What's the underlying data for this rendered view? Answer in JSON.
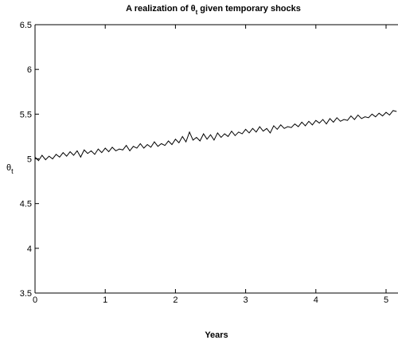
{
  "chart_data": {
    "type": "line",
    "title": [
      "A realization of θ",
      "t",
      " given temporary shocks"
    ],
    "xlabel": "Years",
    "ylabel": [
      "θ",
      "t"
    ],
    "xlim": [
      0,
      5.17
    ],
    "ylim": [
      3.5,
      6.5
    ],
    "xticks": [
      0,
      1,
      2,
      3,
      4,
      5
    ],
    "yticks": [
      3.5,
      4,
      4.5,
      5,
      5.5,
      6,
      6.5
    ],
    "x": [
      0,
      0.05,
      0.1,
      0.15,
      0.2,
      0.25,
      0.3,
      0.35,
      0.4,
      0.45,
      0.5,
      0.55,
      0.6,
      0.65,
      0.7,
      0.75,
      0.8,
      0.85,
      0.9,
      0.95,
      1,
      1.05,
      1.1,
      1.15,
      1.2,
      1.25,
      1.3,
      1.35,
      1.4,
      1.45,
      1.5,
      1.55,
      1.6,
      1.65,
      1.7,
      1.75,
      1.8,
      1.85,
      1.9,
      1.95,
      2,
      2.05,
      2.1,
      2.15,
      2.2,
      2.25,
      2.3,
      2.35,
      2.4,
      2.45,
      2.5,
      2.55,
      2.6,
      2.65,
      2.7,
      2.75,
      2.8,
      2.85,
      2.9,
      2.95,
      3,
      3.05,
      3.1,
      3.15,
      3.2,
      3.25,
      3.3,
      3.35,
      3.4,
      3.45,
      3.5,
      3.55,
      3.6,
      3.65,
      3.7,
      3.75,
      3.8,
      3.85,
      3.9,
      3.95,
      4,
      4.05,
      4.1,
      4.15,
      4.2,
      4.25,
      4.3,
      4.35,
      4.4,
      4.45,
      4.5,
      4.55,
      4.6,
      4.65,
      4.7,
      4.75,
      4.8,
      4.85,
      4.9,
      4.95,
      5,
      5.05,
      5.1,
      5.15
    ],
    "series": [
      {
        "color": "#000000",
        "values": [
          5.02,
          4.98,
          5.04,
          4.99,
          5.03,
          5.0,
          5.05,
          5.02,
          5.07,
          5.03,
          5.08,
          5.04,
          5.09,
          5.02,
          5.1,
          5.06,
          5.09,
          5.05,
          5.11,
          5.07,
          5.12,
          5.08,
          5.13,
          5.09,
          5.11,
          5.1,
          5.15,
          5.09,
          5.14,
          5.12,
          5.17,
          5.12,
          5.16,
          5.13,
          5.19,
          5.14,
          5.17,
          5.15,
          5.2,
          5.16,
          5.22,
          5.18,
          5.25,
          5.19,
          5.3,
          5.21,
          5.24,
          5.2,
          5.28,
          5.22,
          5.27,
          5.21,
          5.29,
          5.24,
          5.28,
          5.25,
          5.31,
          5.26,
          5.3,
          5.28,
          5.33,
          5.29,
          5.34,
          5.3,
          5.36,
          5.31,
          5.34,
          5.29,
          5.37,
          5.33,
          5.38,
          5.34,
          5.36,
          5.35,
          5.39,
          5.36,
          5.41,
          5.37,
          5.42,
          5.38,
          5.43,
          5.4,
          5.44,
          5.39,
          5.45,
          5.41,
          5.46,
          5.42,
          5.44,
          5.43,
          5.48,
          5.44,
          5.49,
          5.45,
          5.47,
          5.46,
          5.5,
          5.47,
          5.51,
          5.48,
          5.52,
          5.49,
          5.54,
          5.53
        ]
      }
    ]
  }
}
